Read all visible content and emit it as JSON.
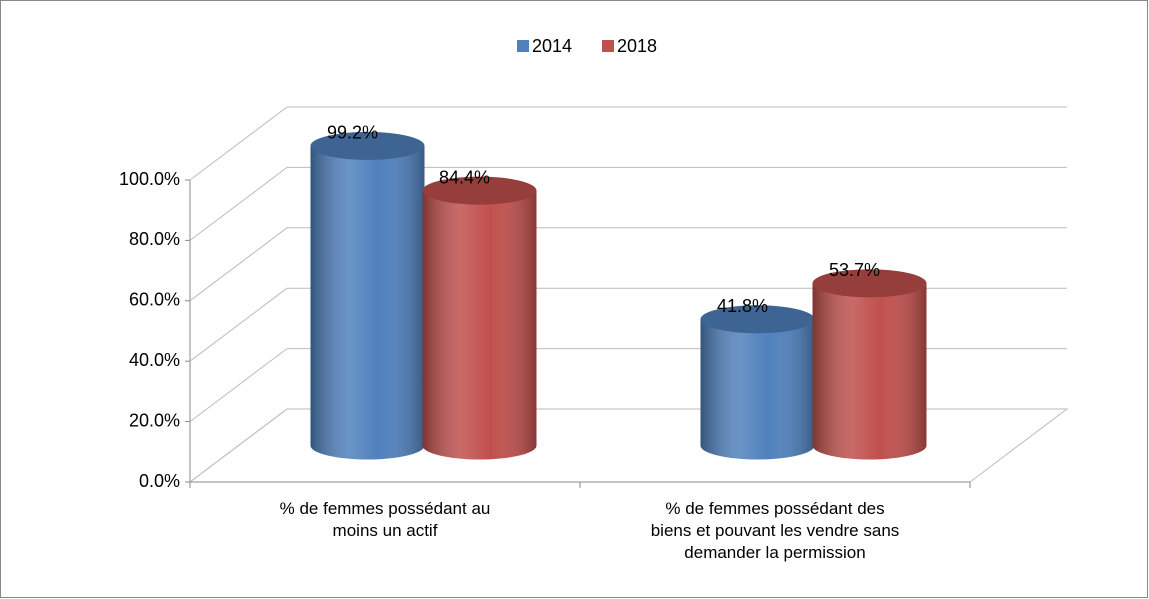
{
  "chart_data": {
    "type": "bar3d",
    "categories": [
      "% de femmes possédant au moins un actif",
      "% de  femmes possédant des biens et pouvant les vendre sans demander la permission"
    ],
    "series": [
      {
        "name": "2014",
        "color": "#4f81bd",
        "values": [
          99.2,
          41.8
        ],
        "value_labels": [
          "99.2%",
          "41.8%"
        ]
      },
      {
        "name": "2018",
        "color": "#c0504d",
        "values": [
          84.4,
          53.7
        ],
        "value_labels": [
          "84.4%",
          "53.7%"
        ]
      }
    ],
    "ylim": [
      0,
      100
    ],
    "yticks": [
      {
        "value": 0,
        "label": "0.0%"
      },
      {
        "value": 20,
        "label": "20.0%"
      },
      {
        "value": 40,
        "label": "40.0%"
      },
      {
        "value": 60,
        "label": "60.0%"
      },
      {
        "value": 80,
        "label": "80.0%"
      },
      {
        "value": 100,
        "label": "100.0%"
      }
    ],
    "grid": true,
    "legend": "top"
  }
}
